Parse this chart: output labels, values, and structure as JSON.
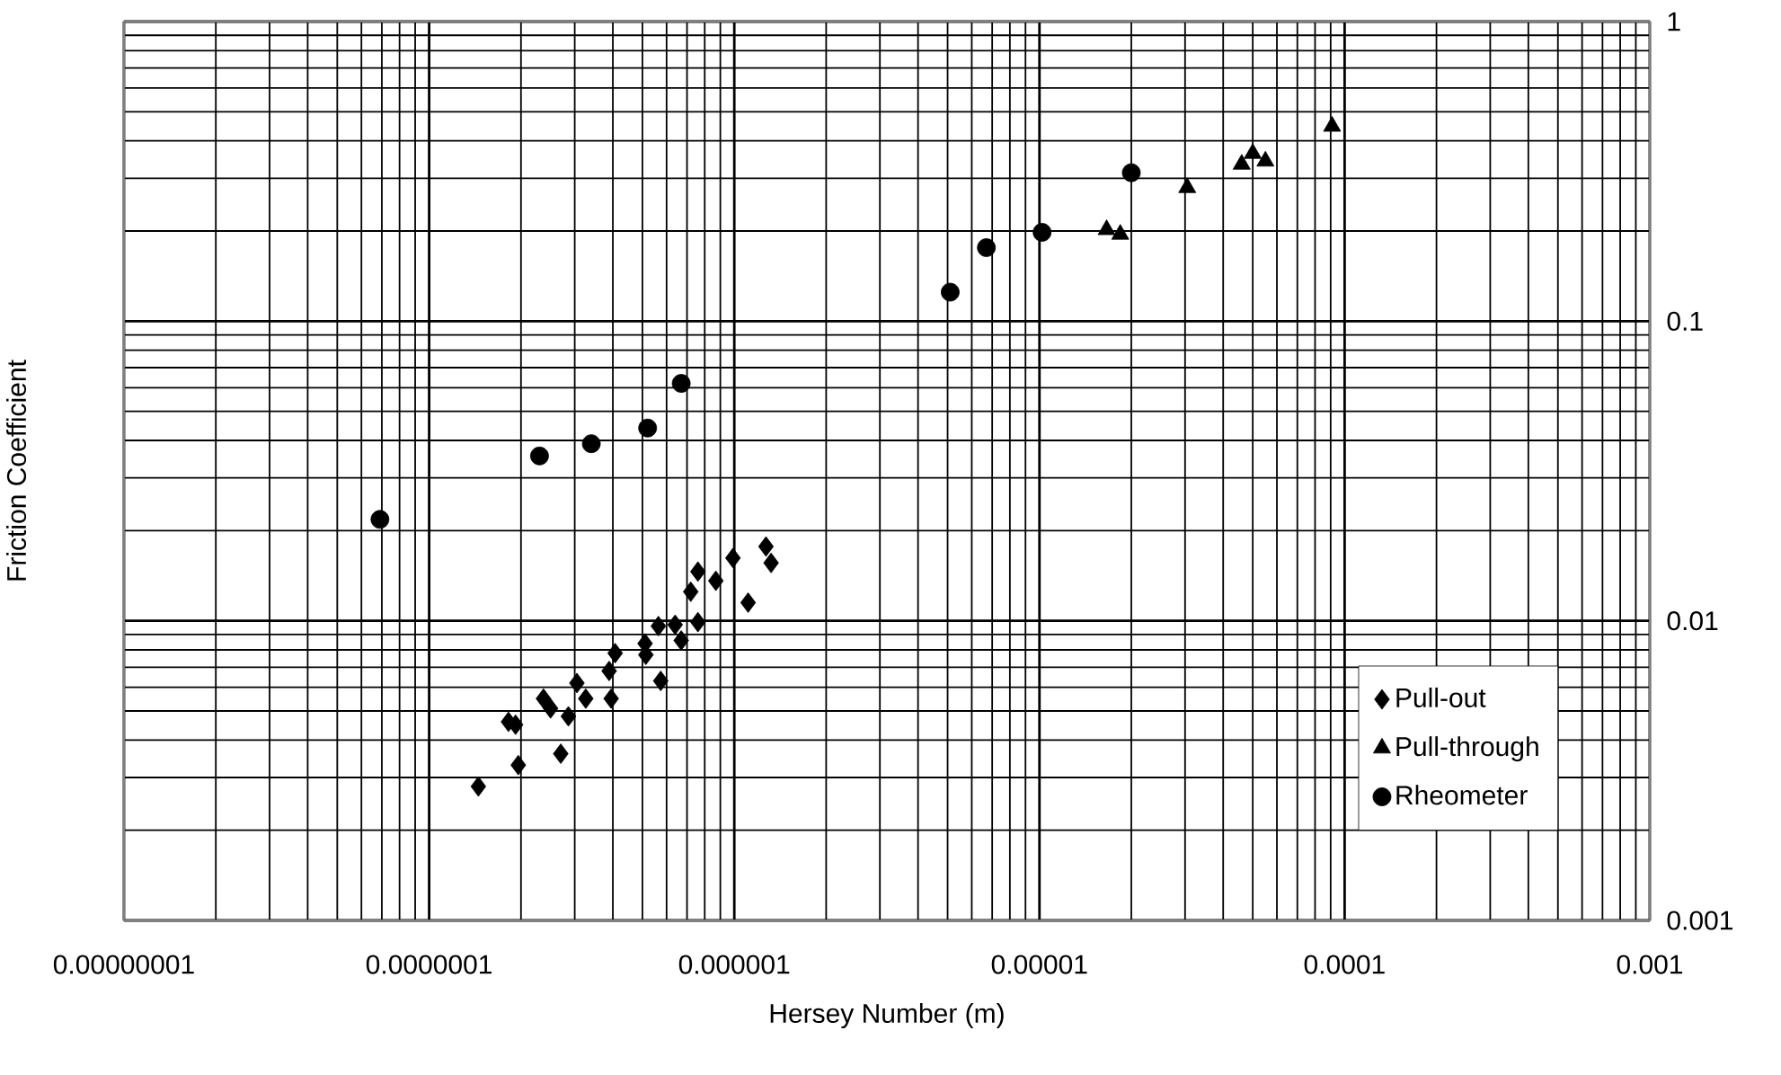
{
  "chart_data": {
    "type": "scatter",
    "xlabel": "Hersey Number (m)",
    "ylabel": "Friction Coefficient",
    "log": "xy",
    "grid": true,
    "legend": "bottom right",
    "xlim": [
      1e-08,
      0.001
    ],
    "ylim": [
      0.001,
      1
    ],
    "xticks": [
      {
        "value": 1e-08,
        "label": "0.00000001"
      },
      {
        "value": 1e-07,
        "label": "0.0000001"
      },
      {
        "value": 1e-06,
        "label": "0.000001"
      },
      {
        "value": 1e-05,
        "label": "0.00001"
      },
      {
        "value": 0.0001,
        "label": "0.0001"
      },
      {
        "value": 0.001,
        "label": "0.001"
      }
    ],
    "yticks": [
      0.001,
      0.01,
      0.1,
      1
    ],
    "series": [
      {
        "name": "Pull-out",
        "color": "#000000",
        "marker": "diamond",
        "x": [
          1.45e-07,
          1.96e-07,
          1.82e-07,
          1.92e-07,
          2.37e-07,
          2.5e-07,
          2.7e-07,
          2.86e-07,
          3.05e-07,
          3.26e-07,
          3.95e-07,
          3.89e-07,
          4.07e-07,
          5.13e-07,
          5.1e-07,
          5.74e-07,
          5.64e-07,
          6.4e-07,
          6.7e-07,
          7.6e-07,
          7.2e-07,
          7.6e-07,
          8.7e-07,
          9.9e-07,
          1.11e-06,
          1.27e-06,
          1.32e-06
        ],
        "values": [
          0.0028,
          0.0033,
          0.0046,
          0.0045,
          0.0055,
          0.0051,
          0.0036,
          0.0048,
          0.0062,
          0.0055,
          0.0055,
          0.0068,
          0.0078,
          0.0077,
          0.0084,
          0.0063,
          0.0096,
          0.0097,
          0.0086,
          0.0099,
          0.0125,
          0.0146,
          0.0136,
          0.0162,
          0.0115,
          0.0177,
          0.0156
        ]
      },
      {
        "name": "Pull-through",
        "color": "#000000",
        "marker": "triangle",
        "x": [
          1.66e-05,
          1.84e-05,
          3.05e-05,
          4.6e-05,
          5e-05,
          5.5e-05,
          9.1e-05
        ],
        "values": [
          0.202,
          0.195,
          0.279,
          0.334,
          0.363,
          0.342,
          0.447
        ]
      },
      {
        "name": "Rheometer",
        "color": "#000000",
        "marker": "circle",
        "x": [
          6.9e-08,
          2.3e-07,
          3.4e-07,
          5.2e-07,
          6.7e-07,
          5.1e-06,
          6.7e-06,
          1.02e-05,
          2e-05
        ],
        "values": [
          0.0218,
          0.0355,
          0.039,
          0.044,
          0.062,
          0.125,
          0.176,
          0.198,
          0.313
        ]
      }
    ]
  }
}
